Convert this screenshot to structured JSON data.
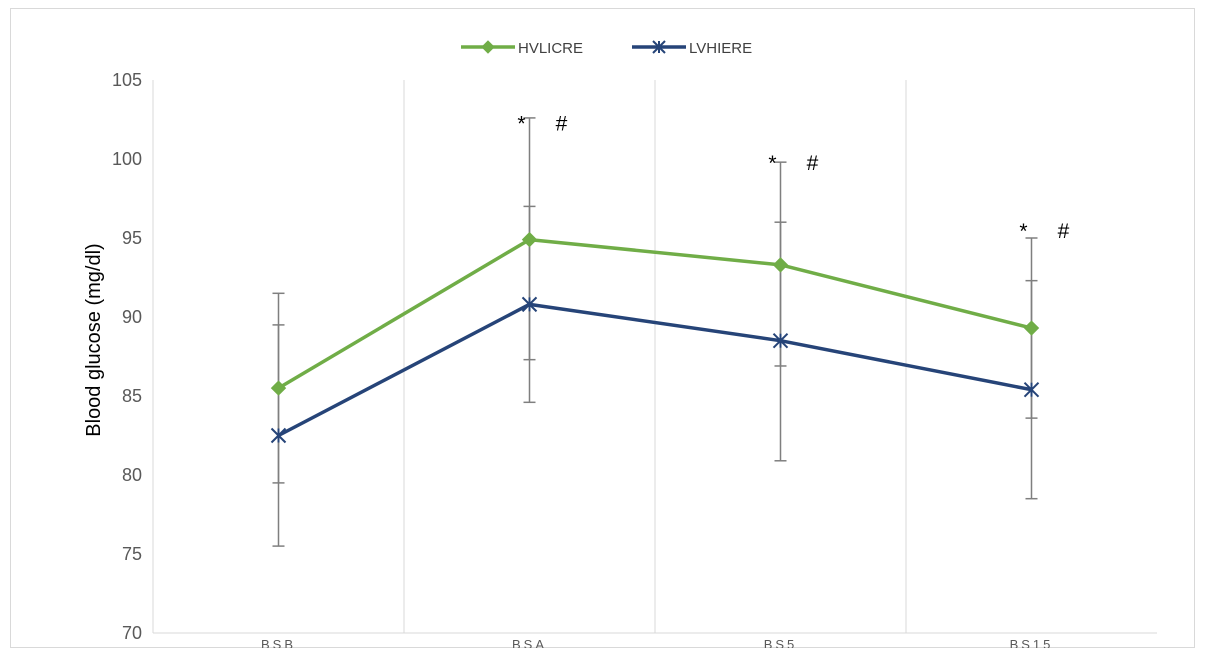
{
  "chart_data": {
    "type": "line",
    "title": "",
    "xlabel": "",
    "ylabel": "Blood glucose (mg/dl)",
    "categories": [
      "BSB",
      "BSA",
      "BS5",
      "BS15"
    ],
    "ylim": [
      70,
      105
    ],
    "yticks": [
      70,
      75,
      80,
      85,
      90,
      95,
      100,
      105
    ],
    "grid": "vertical",
    "legend_position": "top-center",
    "series": [
      {
        "name": "HVLICRE",
        "color": "#70ad47",
        "marker": "diamond",
        "values": [
          85.5,
          94.9,
          93.3,
          89.3
        ],
        "err_plus": [
          6.0,
          7.7,
          6.5,
          5.7
        ],
        "err_minus": [
          6.0,
          7.6,
          6.4,
          5.7
        ]
      },
      {
        "name": "LVHIERE",
        "color": "#264478",
        "marker": "asterisk",
        "values": [
          82.5,
          90.8,
          88.5,
          85.4
        ],
        "err_plus": [
          7.0,
          6.2,
          7.5,
          6.9
        ],
        "err_minus": [
          7.0,
          6.2,
          7.6,
          6.9
        ]
      }
    ],
    "annotations": [
      {
        "category": "BSA",
        "text": "*",
        "y": 102.3
      },
      {
        "category": "BSA",
        "text": "#",
        "y": 102.3
      },
      {
        "category": "BS5",
        "text": "*",
        "y": 99.8
      },
      {
        "category": "BS5",
        "text": "#",
        "y": 99.8
      },
      {
        "category": "BS15",
        "text": "*",
        "y": 95.5
      },
      {
        "category": "BS15",
        "text": "#",
        "y": 95.5
      }
    ]
  }
}
